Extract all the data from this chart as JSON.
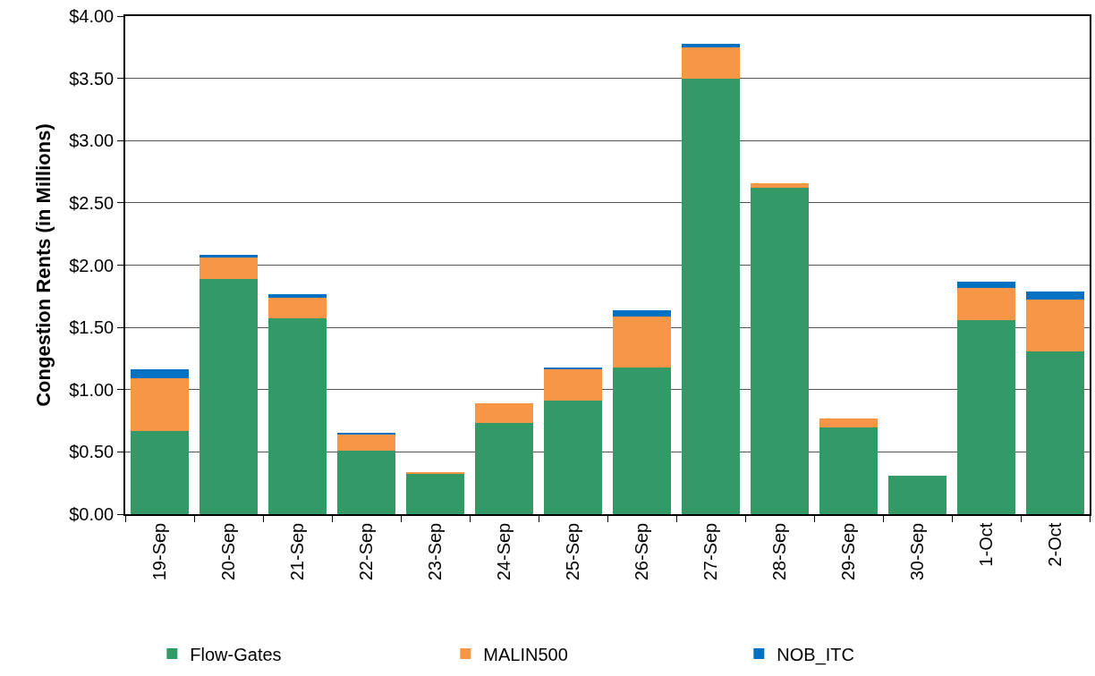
{
  "chart_data": {
    "type": "bar",
    "stacked": true,
    "ylabel": "Congestion Rents (in Millions)",
    "categories": [
      "19-Sep",
      "20-Sep",
      "21-Sep",
      "22-Sep",
      "23-Sep",
      "24-Sep",
      "25-Sep",
      "26-Sep",
      "27-Sep",
      "28-Sep",
      "29-Sep",
      "30-Sep",
      "1-Oct",
      "2-Oct"
    ],
    "series": [
      {
        "name": "Flow-Gates",
        "color": "#339966",
        "values": [
          0.67,
          1.89,
          1.57,
          0.51,
          0.32,
          0.73,
          0.91,
          1.18,
          3.5,
          2.62,
          0.7,
          0.31,
          1.56,
          1.31
        ]
      },
      {
        "name": "MALIN500",
        "color": "#f79646",
        "values": [
          0.42,
          0.17,
          0.17,
          0.13,
          0.02,
          0.16,
          0.25,
          0.41,
          0.25,
          0.04,
          0.07,
          null,
          0.26,
          0.41
        ]
      },
      {
        "name": "NOB_ITC",
        "color": "#0070c0",
        "values": [
          0.07,
          0.02,
          0.03,
          0.01,
          null,
          null,
          0.02,
          0.05,
          0.03,
          null,
          null,
          null,
          0.05,
          0.07
        ]
      }
    ],
    "ylim": [
      0,
      4
    ],
    "yticks": [
      {
        "value": 0,
        "label": "$0.00"
      },
      {
        "value": 0.5,
        "label": "$0.50"
      },
      {
        "value": 1,
        "label": "$1.00"
      },
      {
        "value": 1.5,
        "label": "$1.50"
      },
      {
        "value": 2,
        "label": "$2.00"
      },
      {
        "value": 2.5,
        "label": "$2.50"
      },
      {
        "value": 3,
        "label": "$3.00"
      },
      {
        "value": 3.5,
        "label": "$3.50"
      },
      {
        "value": 4,
        "label": "$4.00"
      }
    ],
    "grid": "y",
    "legend": "bottom"
  }
}
